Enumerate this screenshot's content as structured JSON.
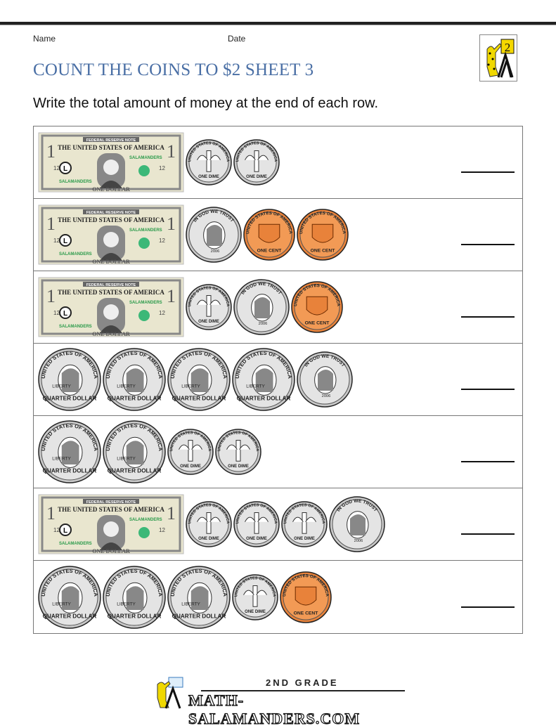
{
  "header": {
    "name_label": "Name",
    "date_label": "Date",
    "title": "COUNT THE COINS TO $2 SHEET 3",
    "instruction": "Write the total amount of money at the end of each row.",
    "logo_digit": "2"
  },
  "money_labels": {
    "bill": {
      "top": "FEDERAL RESERVE NOTE",
      "country": "THE UNITED STATES OF AMERICA",
      "bottom": "ONE DOLLAR",
      "brand": "SALAMANDERS",
      "denom": "1",
      "serial": "12",
      "seal": "L"
    },
    "quarter": {
      "rim": "UNITED STATES OF AMERICA",
      "motto": "LIBERTY",
      "bottom": "QUARTER DOLLAR"
    },
    "dime": {
      "rim": "UNITED STATES OF AMERICA",
      "bottom": "ONE DIME"
    },
    "nickel": {
      "rim": "IN GOD WE TRUST",
      "year": "2006",
      "sig": "Liberty"
    },
    "penny": {
      "rim": "UNITED STATES OF AMERICA",
      "bottom": "ONE CENT",
      "motto": "E PLURIBUS UNUM"
    }
  },
  "colors": {
    "title": "#4a6fa5",
    "bill": "#e9e6cf",
    "penny": "#e8823a",
    "silver": "#c8c8c8"
  },
  "rows": [
    {
      "items": [
        "bill",
        "dime",
        "dime"
      ]
    },
    {
      "items": [
        "bill",
        "nickel",
        "penny",
        "penny"
      ]
    },
    {
      "items": [
        "bill",
        "dime",
        "nickel",
        "penny"
      ]
    },
    {
      "items": [
        "quarter",
        "quarter",
        "quarter",
        "quarter",
        "nickel"
      ]
    },
    {
      "items": [
        "quarter",
        "quarter",
        "dime",
        "dime"
      ]
    },
    {
      "items": [
        "bill",
        "dime",
        "dime",
        "dime",
        "nickel"
      ]
    },
    {
      "items": [
        "quarter",
        "quarter",
        "quarter",
        "dime",
        "penny"
      ]
    }
  ],
  "footer": {
    "grade": "2ND GRADE",
    "site": "MATH-SALAMANDERS.COM"
  }
}
